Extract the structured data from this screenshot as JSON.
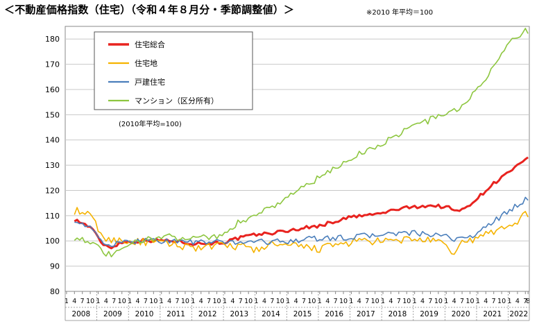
{
  "title": "＜不動産価格指数（住宅）（令和４年８月分・季節調整値）＞",
  "note": "※2010 年平均＝100",
  "chart_data": {
    "type": "line",
    "title": "",
    "ylim": [
      80,
      185
    ],
    "yticks": [
      80,
      90,
      100,
      110,
      120,
      130,
      140,
      150,
      160,
      170,
      180
    ],
    "inner_note": "(2010年平均=100)",
    "month_ticks": [
      "1",
      "4",
      "7",
      "10"
    ],
    "last_year_month_ticks": [
      "1",
      "4",
      "7",
      "8"
    ],
    "years": [
      "2008",
      "2009",
      "2010",
      "2011",
      "2012",
      "2013",
      "2014",
      "2015",
      "2016",
      "2017",
      "2018",
      "2019",
      "2020",
      "2021",
      "2022"
    ],
    "x_start": "2008-04",
    "x_end": "2022-08",
    "grid": true,
    "legend_position": "top-left",
    "series": [
      {
        "name": "住宅総合",
        "color": "#e8231f",
        "width": 3,
        "anchors": [
          [
            "2008-04",
            108.5
          ],
          [
            "2008-10",
            105.5
          ],
          [
            "2009-03",
            98.5
          ],
          [
            "2009-06",
            97.5
          ],
          [
            "2009-10",
            99.5
          ],
          [
            "2010-01",
            99.5
          ],
          [
            "2010-06",
            100.2
          ],
          [
            "2011-01",
            100.2
          ],
          [
            "2011-06",
            100
          ],
          [
            "2012-01",
            99
          ],
          [
            "2012-06",
            99
          ],
          [
            "2013-01",
            99.5
          ],
          [
            "2013-06",
            101
          ],
          [
            "2014-01",
            102.5
          ],
          [
            "2014-06",
            103
          ],
          [
            "2015-01",
            104
          ],
          [
            "2015-06",
            105
          ],
          [
            "2016-01",
            106
          ],
          [
            "2016-06",
            107.5
          ],
          [
            "2017-01",
            109.5
          ],
          [
            "2017-06",
            110
          ],
          [
            "2018-01",
            111
          ],
          [
            "2018-06",
            112.5
          ],
          [
            "2019-01",
            113.5
          ],
          [
            "2019-06",
            114
          ],
          [
            "2020-01",
            113.5
          ],
          [
            "2020-06",
            111.5
          ],
          [
            "2021-01",
            117
          ],
          [
            "2021-06",
            122
          ],
          [
            "2022-01",
            127.5
          ],
          [
            "2022-08",
            132.5
          ]
        ],
        "noise": 0.7
      },
      {
        "name": "住宅地",
        "color": "#f5b300",
        "width": 1.6,
        "anchors": [
          [
            "2008-04",
            112
          ],
          [
            "2008-10",
            110
          ],
          [
            "2009-04",
            100
          ],
          [
            "2009-08",
            100.5
          ],
          [
            "2010-01",
            99.8
          ],
          [
            "2010-06",
            99.5
          ],
          [
            "2011-01",
            99
          ],
          [
            "2011-06",
            98.5
          ],
          [
            "2012-01",
            97.5
          ],
          [
            "2012-06",
            97.5
          ],
          [
            "2013-01",
            98
          ],
          [
            "2013-06",
            98
          ],
          [
            "2014-01",
            96.5
          ],
          [
            "2014-06",
            98.5
          ],
          [
            "2015-01",
            98
          ],
          [
            "2015-06",
            97.5
          ],
          [
            "2016-01",
            97
          ],
          [
            "2016-06",
            98
          ],
          [
            "2017-01",
            99.5
          ],
          [
            "2017-06",
            100
          ],
          [
            "2018-01",
            99.5
          ],
          [
            "2018-06",
            100
          ],
          [
            "2019-01",
            101
          ],
          [
            "2019-06",
            100
          ],
          [
            "2019-12",
            99
          ],
          [
            "2020-03",
            94
          ],
          [
            "2020-06",
            99
          ],
          [
            "2021-01",
            101
          ],
          [
            "2021-06",
            103.5
          ],
          [
            "2022-01",
            106
          ],
          [
            "2022-08",
            111
          ]
        ],
        "noise": 1.6
      },
      {
        "name": "戸建住宅",
        "color": "#4a7ebb",
        "width": 1.6,
        "anchors": [
          [
            "2008-04",
            108.5
          ],
          [
            "2008-10",
            105
          ],
          [
            "2009-03",
            99
          ],
          [
            "2009-06",
            98.5
          ],
          [
            "2009-10",
            99
          ],
          [
            "2010-01",
            99.5
          ],
          [
            "2010-06",
            100.5
          ],
          [
            "2011-01",
            100
          ],
          [
            "2011-06",
            100
          ],
          [
            "2012-01",
            99.5
          ],
          [
            "2012-06",
            99.5
          ],
          [
            "2013-01",
            99.5
          ],
          [
            "2013-06",
            99.5
          ],
          [
            "2014-01",
            100
          ],
          [
            "2014-06",
            99.5
          ],
          [
            "2015-01",
            100
          ],
          [
            "2015-06",
            100.5
          ],
          [
            "2016-01",
            101
          ],
          [
            "2016-06",
            101
          ],
          [
            "2017-01",
            101.5
          ],
          [
            "2017-06",
            102
          ],
          [
            "2018-01",
            102.5
          ],
          [
            "2018-06",
            103
          ],
          [
            "2019-01",
            103
          ],
          [
            "2019-06",
            102.5
          ],
          [
            "2020-01",
            101.5
          ],
          [
            "2020-06",
            100.5
          ],
          [
            "2021-01",
            103
          ],
          [
            "2021-06",
            107
          ],
          [
            "2022-01",
            112
          ],
          [
            "2022-08",
            117
          ]
        ],
        "noise": 1.1
      },
      {
        "name": "マンション（区分所有）",
        "color": "#8dc63f",
        "width": 1.6,
        "anchors": [
          [
            "2008-04",
            101.5
          ],
          [
            "2008-10",
            100
          ],
          [
            "2009-03",
            95
          ],
          [
            "2009-06",
            94.5
          ],
          [
            "2009-10",
            96
          ],
          [
            "2010-01",
            98.5
          ],
          [
            "2010-06",
            100.5
          ],
          [
            "2011-01",
            101.5
          ],
          [
            "2011-06",
            101.5
          ],
          [
            "2012-01",
            101.5
          ],
          [
            "2012-06",
            101.5
          ],
          [
            "2013-01",
            102.5
          ],
          [
            "2013-06",
            107
          ],
          [
            "2014-01",
            111
          ],
          [
            "2014-06",
            113
          ],
          [
            "2015-01",
            117.5
          ],
          [
            "2015-06",
            121
          ],
          [
            "2016-01",
            125
          ],
          [
            "2016-06",
            128
          ],
          [
            "2017-01",
            133
          ],
          [
            "2017-06",
            135.5
          ],
          [
            "2018-01",
            138.5
          ],
          [
            "2018-06",
            142
          ],
          [
            "2019-01",
            146
          ],
          [
            "2019-06",
            147.5
          ],
          [
            "2020-01",
            151
          ],
          [
            "2020-06",
            152
          ],
          [
            "2021-01",
            160
          ],
          [
            "2021-06",
            168
          ],
          [
            "2022-01",
            178
          ],
          [
            "2022-06",
            183
          ],
          [
            "2022-08",
            183
          ]
        ],
        "noise": 1.3
      }
    ]
  }
}
